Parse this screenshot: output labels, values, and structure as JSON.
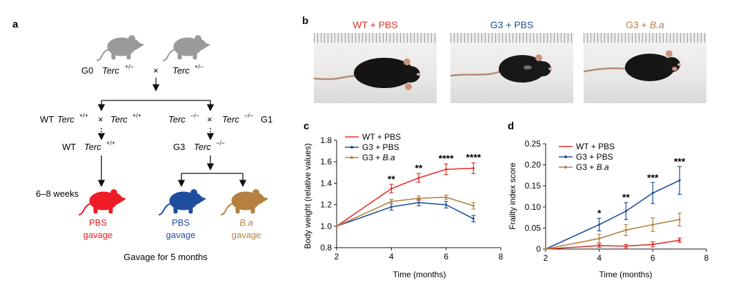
{
  "panel_a": {
    "label": "a",
    "g0": "G0",
    "cross": "×",
    "terc": "Terc",
    "het": "+/−",
    "wt_geno": "+/+",
    "ko_geno": "−/−",
    "wt": "WT",
    "g1": "G1",
    "g3": "G3",
    "weeks": "6–8 weeks",
    "pbs": "PBS",
    "gavage": "gavage",
    "ba": "B.a",
    "footer": "Gavage for 5 months",
    "colors": {
      "red": "#ee1c24",
      "blue": "#1f4e9c",
      "brown": "#b58040",
      "gray": "#9a9a9a"
    }
  },
  "panel_b": {
    "label": "b",
    "photos": [
      {
        "title": "WT + PBS",
        "color": "#e0302a"
      },
      {
        "title": "G3 + PBS",
        "color": "#1f4e9c"
      },
      {
        "title_prefix": "G3 + ",
        "title_italic": "B.a",
        "color": "#b58040"
      }
    ]
  },
  "chart_data": [
    {
      "label": "c",
      "type": "line",
      "xlabel": "Time (months)",
      "ylabel": "Body weight (relative values)",
      "xlim": [
        2,
        8
      ],
      "ylim": [
        0.8,
        1.8
      ],
      "xticks": [
        "2",
        "4",
        "6",
        "8"
      ],
      "yticks": [
        "0.8",
        "1.0",
        "1.2",
        "1.4",
        "1.6",
        "1.8"
      ],
      "x": [
        2,
        4,
        5,
        6,
        7
      ],
      "series": [
        {
          "name": "WT + PBS",
          "color": "#e0302a",
          "values": [
            1.0,
            1.35,
            1.45,
            1.53,
            1.54
          ],
          "errors": [
            0,
            0.04,
            0.04,
            0.05,
            0.05
          ]
        },
        {
          "name": "G3 + PBS",
          "color": "#1f4e9c",
          "values": [
            1.0,
            1.18,
            1.22,
            1.2,
            1.07
          ],
          "errors": [
            0,
            0.03,
            0.03,
            0.03,
            0.03
          ]
        },
        {
          "name_prefix": "G3 + ",
          "name_italic": "B.a",
          "color": "#b58040",
          "values": [
            1.0,
            1.23,
            1.26,
            1.27,
            1.19
          ],
          "errors": [
            0,
            0.02,
            0.02,
            0.02,
            0.03
          ]
        }
      ],
      "annotations": [
        {
          "x": 4,
          "y": 1.41,
          "text": "**"
        },
        {
          "x": 5,
          "y": 1.51,
          "text": "**"
        },
        {
          "x": 6,
          "y": 1.6,
          "text": "****"
        },
        {
          "x": 7,
          "y": 1.61,
          "text": "****"
        }
      ],
      "legend": "top-right"
    },
    {
      "label": "d",
      "type": "line",
      "xlabel": "Time (months)",
      "ylabel": "Frailty index score",
      "xlim": [
        2,
        8
      ],
      "ylim": [
        0,
        0.25
      ],
      "xticks": [
        "2",
        "4",
        "6",
        "8"
      ],
      "yticks": [
        "0",
        "0.05",
        "0.10",
        "0.15",
        "0.20",
        "0.25"
      ],
      "x": [
        2,
        4,
        5,
        6,
        7
      ],
      "series": [
        {
          "name": "WT + PBS",
          "color": "#e0302a",
          "values": [
            0,
            0.008,
            0.007,
            0.011,
            0.021
          ],
          "errors": [
            0,
            0.004,
            0.004,
            0.006,
            0.005
          ]
        },
        {
          "name": "G3 + PBS",
          "color": "#1f4e9c",
          "values": [
            0,
            0.058,
            0.09,
            0.133,
            0.163
          ],
          "errors": [
            0,
            0.015,
            0.02,
            0.025,
            0.033
          ]
        },
        {
          "name_prefix": "G3 + ",
          "name_italic": "B.a",
          "color": "#b58040",
          "values": [
            0,
            0.025,
            0.045,
            0.058,
            0.07
          ],
          "errors": [
            0,
            0.01,
            0.013,
            0.016,
            0.015
          ]
        }
      ],
      "annotations": [
        {
          "x": 4,
          "y": 0.078,
          "text": "*"
        },
        {
          "x": 5,
          "y": 0.115,
          "text": "**"
        },
        {
          "x": 6,
          "y": 0.162,
          "text": "***"
        },
        {
          "x": 7,
          "y": 0.2,
          "text": "***"
        }
      ],
      "legend": "top-left"
    }
  ]
}
